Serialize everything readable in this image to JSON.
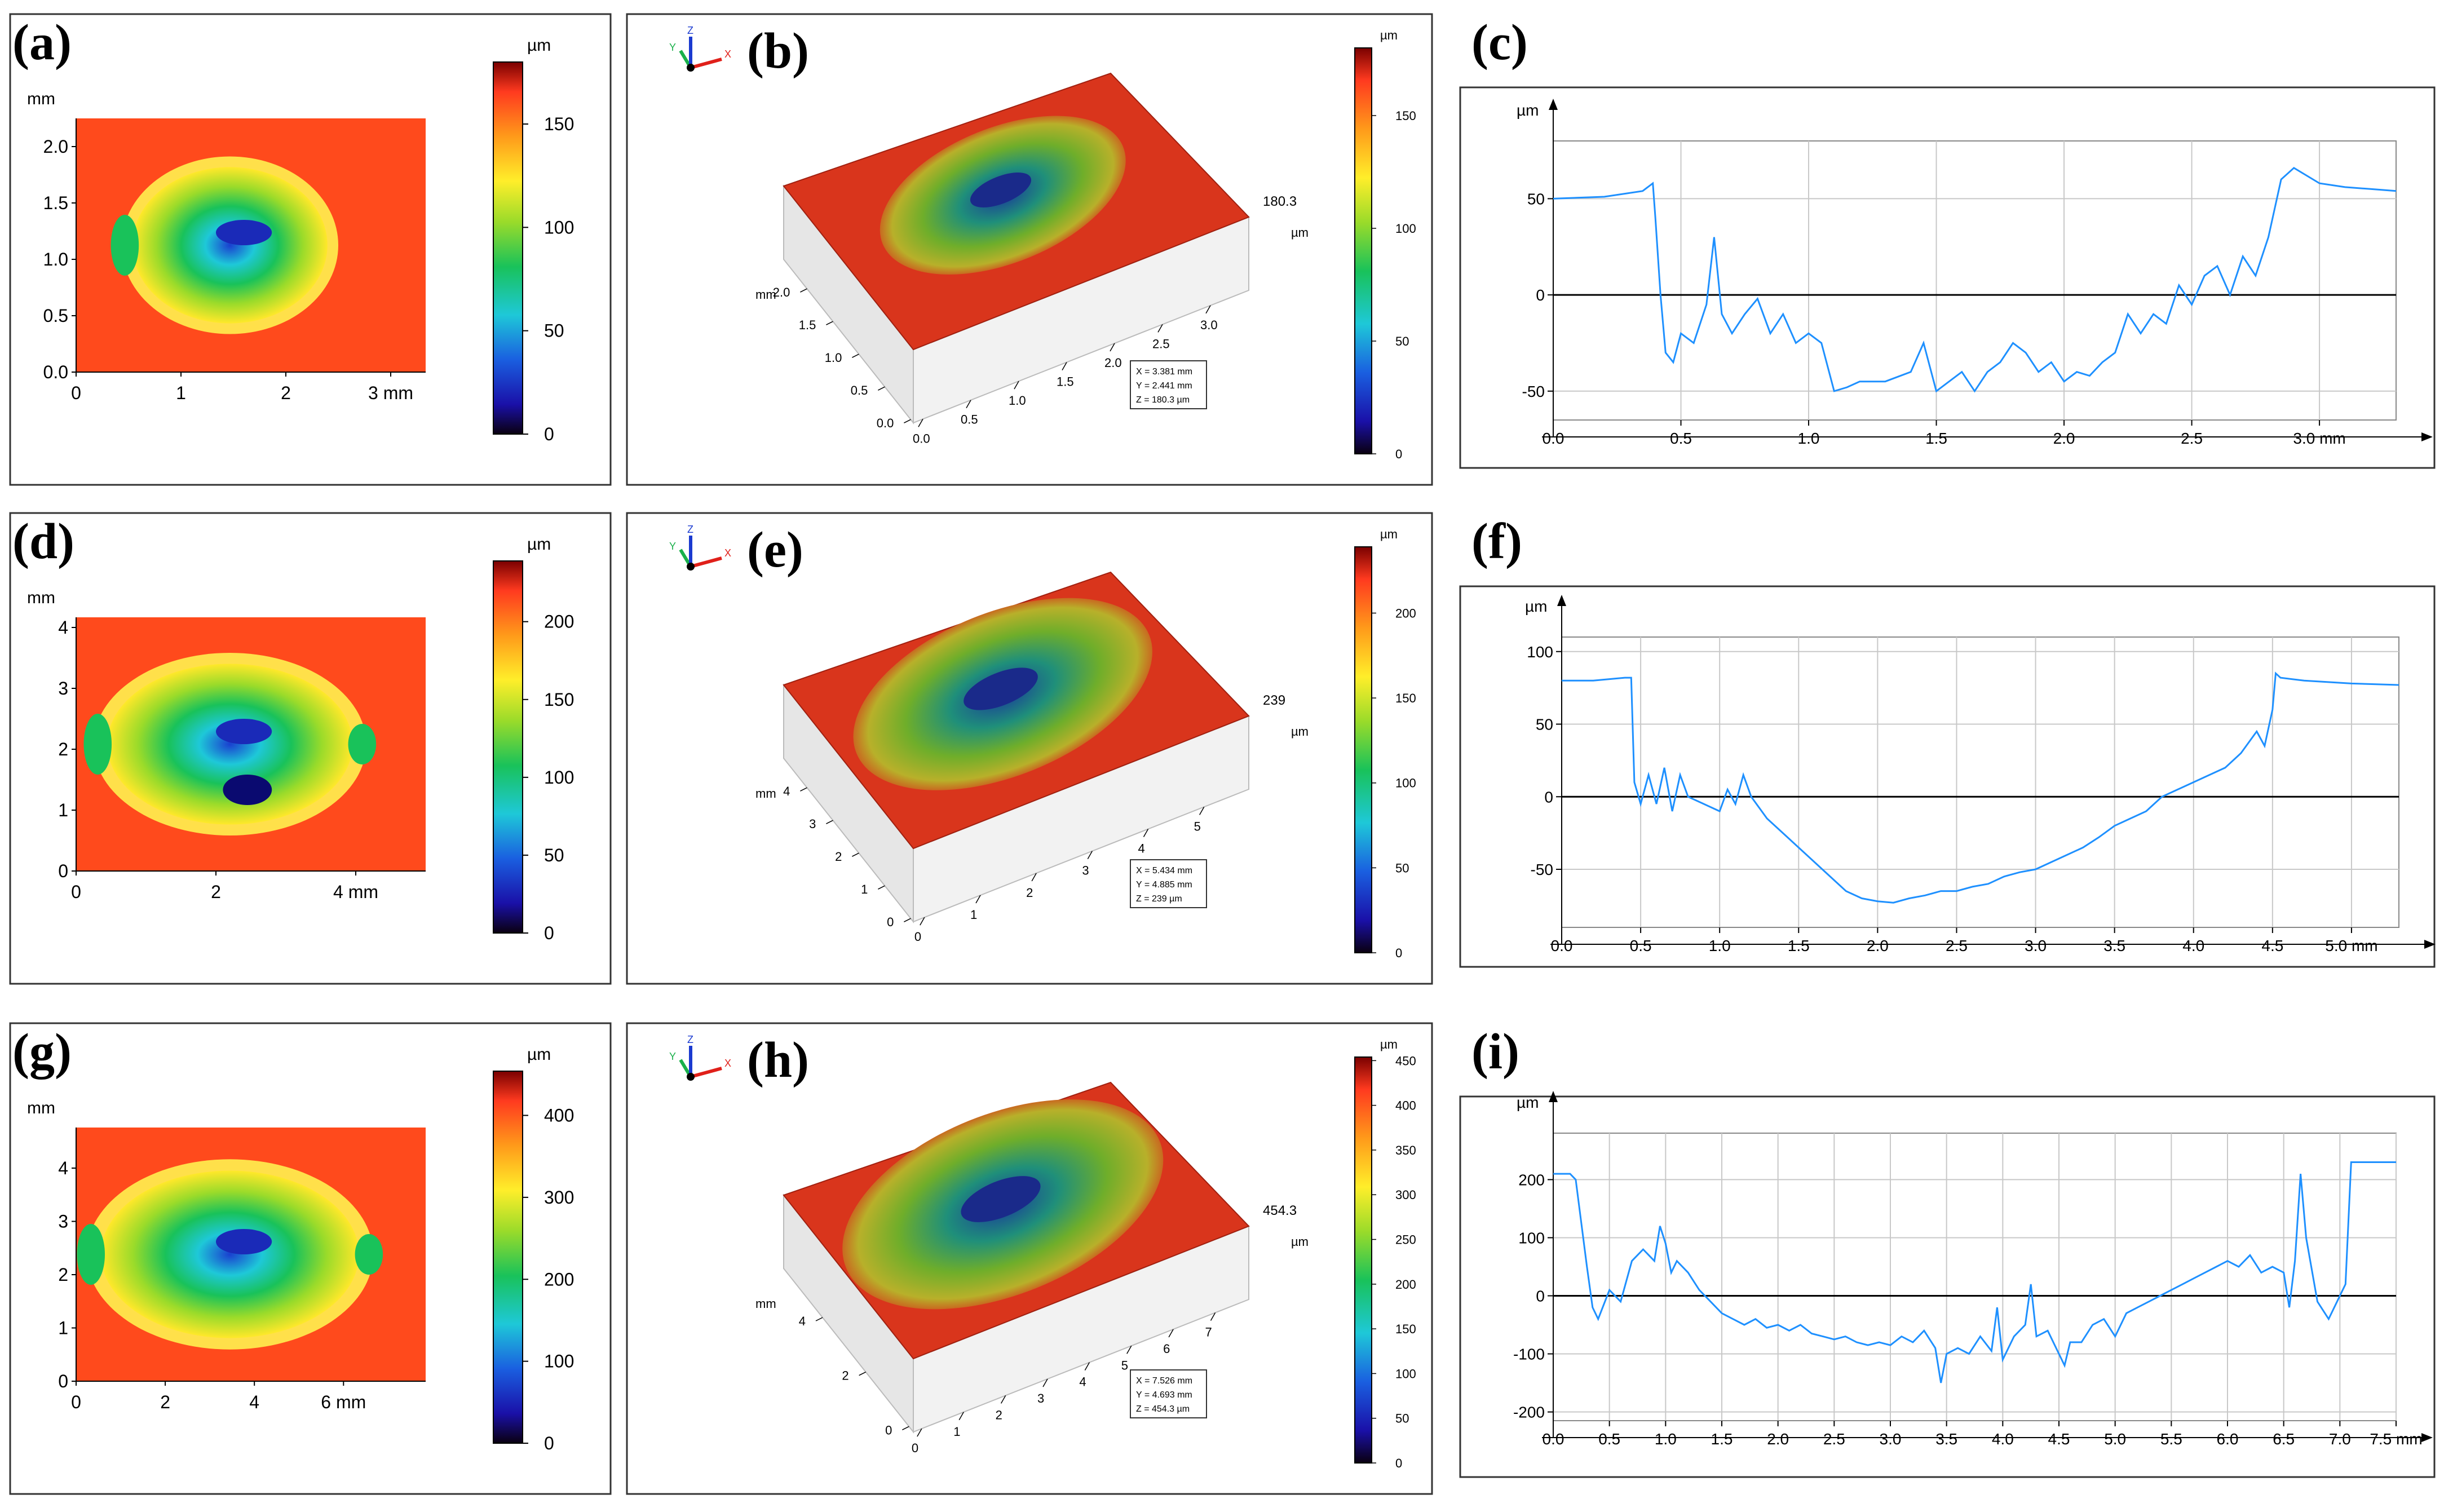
{
  "figure": {
    "colors": {
      "frame": "#333333",
      "profile_line": "#1E90FF",
      "grid": "#c8c8c8",
      "colorbar_stops": [
        "#7a0000",
        "#ff3a1f",
        "#ff9a1a",
        "#ffee2a",
        "#9adb2a",
        "#19c25a",
        "#1ec8d8",
        "#1a5fe0",
        "#1a10a8",
        "#0a0010"
      ]
    },
    "rows": [
      {
        "map_label": "(a)",
        "view_label": "(b)",
        "profile_label": "(c)",
        "map": {
          "unit_y": "mm",
          "unit_bar": "µm",
          "y_ticks": [
            "0.0",
            "0.5",
            "1.0",
            "1.5",
            "2.0"
          ],
          "x_ticks": [
            "0",
            "1",
            "2",
            "3 mm"
          ],
          "bar_ticks": [
            "0",
            "50",
            "100",
            "150"
          ],
          "bar_max": 180
        },
        "view": {
          "bar_unit": "µm",
          "bar_ticks": [
            "0",
            "50",
            "100",
            "150"
          ],
          "bar_max": 180,
          "z_label": "180.3",
          "z_unit": "µm",
          "x_ticks": [
            "0.0",
            "0.5",
            "1.0",
            "1.5",
            "2.0",
            "2.5",
            "3.0"
          ],
          "y_ticks": [
            "0.0",
            "0.5",
            "1.0",
            "1.5",
            "2.0"
          ],
          "axis_unit": "mm",
          "readout": [
            "X = 3.381 mm",
            "Y = 2.441 mm",
            "Z = 180.3 µm"
          ],
          "axis_letters": [
            "X",
            "Y",
            "Z"
          ]
        },
        "profile": {
          "y_unit": "µm",
          "y_ticks": [
            "-50",
            "0",
            "50"
          ],
          "x_ticks": [
            "0.0",
            "0.5",
            "1.0",
            "1.5",
            "2.0",
            "2.5",
            "3.0 mm"
          ]
        }
      },
      {
        "map_label": "(d)",
        "view_label": "(e)",
        "profile_label": "(f)",
        "map": {
          "unit_y": "mm",
          "unit_bar": "µm",
          "y_ticks": [
            "0",
            "1",
            "2",
            "3",
            "4"
          ],
          "x_ticks": [
            "0",
            "2",
            "4 mm"
          ],
          "bar_ticks": [
            "0",
            "50",
            "100",
            "150",
            "200"
          ],
          "bar_max": 239
        },
        "view": {
          "bar_unit": "µm",
          "bar_ticks": [
            "0",
            "50",
            "100",
            "150",
            "200"
          ],
          "bar_max": 239,
          "z_label": "239",
          "z_unit": "µm",
          "x_ticks": [
            "0",
            "1",
            "2",
            "3",
            "4",
            "5"
          ],
          "y_ticks": [
            "0",
            "1",
            "2",
            "3",
            "4"
          ],
          "axis_unit": "mm",
          "readout": [
            "X = 5.434 mm",
            "Y = 4.885 mm",
            "Z = 239 µm"
          ],
          "axis_letters": [
            "X",
            "Y",
            "Z"
          ]
        },
        "profile": {
          "y_unit": "µm",
          "y_ticks": [
            "-50",
            "0",
            "50",
            "100"
          ],
          "x_ticks": [
            "0.0",
            "0.5",
            "1.0",
            "1.5",
            "2.0",
            "2.5",
            "3.0",
            "3.5",
            "4.0",
            "4.5",
            "5.0 mm"
          ]
        }
      },
      {
        "map_label": "(g)",
        "view_label": "(h)",
        "profile_label": "(i)",
        "map": {
          "unit_y": "mm",
          "unit_bar": "µm",
          "y_ticks": [
            "0",
            "1",
            "2",
            "3",
            "4"
          ],
          "x_ticks": [
            "0",
            "2",
            "4",
            "6 mm"
          ],
          "bar_ticks": [
            "0",
            "100",
            "200",
            "300",
            "400"
          ],
          "bar_max": 454
        },
        "view": {
          "bar_unit": "µm",
          "bar_ticks": [
            "0",
            "50",
            "100",
            "150",
            "200",
            "250",
            "300",
            "350",
            "400",
            "450"
          ],
          "bar_max": 454,
          "z_label": "454.3",
          "z_unit": "µm",
          "x_ticks": [
            "0",
            "1",
            "2",
            "3",
            "4",
            "5",
            "6",
            "7"
          ],
          "y_ticks": [
            "0",
            "2",
            "4"
          ],
          "axis_unit": "mm",
          "readout": [
            "X = 7.526 mm",
            "Y = 4.693 mm",
            "Z = 454.3 µm"
          ],
          "axis_letters": [
            "X",
            "Y",
            "Z"
          ]
        },
        "profile": {
          "y_unit": "µm",
          "y_ticks": [
            "-200",
            "-100",
            "0",
            "100",
            "200"
          ],
          "x_ticks": [
            "0.0",
            "0.5",
            "1.0",
            "1.5",
            "2.0",
            "2.5",
            "3.0",
            "3.5",
            "4.0",
            "4.5",
            "5.0",
            "5.5",
            "6.0",
            "6.5",
            "7.0",
            "7.5 mm"
          ]
        }
      }
    ]
  },
  "chart_data": [
    {
      "type": "line",
      "title": "(c)",
      "xlabel": "mm",
      "ylabel": "µm",
      "xlim": [
        0,
        3.3
      ],
      "ylim": [
        -65,
        80
      ],
      "x": [
        0.0,
        0.2,
        0.35,
        0.39,
        0.4,
        0.42,
        0.44,
        0.47,
        0.5,
        0.55,
        0.6,
        0.63,
        0.66,
        0.7,
        0.75,
        0.8,
        0.85,
        0.9,
        0.95,
        1.0,
        1.05,
        1.1,
        1.15,
        1.2,
        1.3,
        1.4,
        1.45,
        1.5,
        1.55,
        1.6,
        1.65,
        1.7,
        1.75,
        1.8,
        1.85,
        1.9,
        1.95,
        2.0,
        2.05,
        2.1,
        2.15,
        2.2,
        2.25,
        2.3,
        2.35,
        2.4,
        2.45,
        2.5,
        2.55,
        2.6,
        2.65,
        2.7,
        2.75,
        2.8,
        2.85,
        2.9,
        3.0,
        3.1,
        3.2,
        3.3
      ],
      "y": [
        50,
        51,
        54,
        58,
        40,
        0,
        -30,
        -35,
        -20,
        -25,
        -5,
        30,
        -10,
        -20,
        -10,
        -2,
        -20,
        -10,
        -25,
        -20,
        -25,
        -50,
        -48,
        -45,
        -45,
        -40,
        -25,
        -50,
        -45,
        -40,
        -50,
        -40,
        -35,
        -25,
        -30,
        -40,
        -35,
        -45,
        -40,
        -42,
        -35,
        -30,
        -10,
        -20,
        -10,
        -15,
        5,
        -5,
        10,
        15,
        0,
        20,
        10,
        30,
        60,
        66,
        58,
        56,
        55,
        54
      ]
    },
    {
      "type": "line",
      "title": "(f)",
      "xlabel": "mm",
      "ylabel": "µm",
      "xlim": [
        0,
        5.3
      ],
      "ylim": [
        -90,
        110
      ],
      "x": [
        0.0,
        0.2,
        0.4,
        0.44,
        0.46,
        0.5,
        0.55,
        0.6,
        0.65,
        0.7,
        0.75,
        0.8,
        0.9,
        1.0,
        1.05,
        1.1,
        1.15,
        1.2,
        1.3,
        1.4,
        1.5,
        1.6,
        1.7,
        1.8,
        1.9,
        2.0,
        2.1,
        2.2,
        2.3,
        2.4,
        2.5,
        2.6,
        2.7,
        2.8,
        2.9,
        3.0,
        3.1,
        3.2,
        3.3,
        3.4,
        3.5,
        3.6,
        3.7,
        3.8,
        3.9,
        4.0,
        4.1,
        4.2,
        4.3,
        4.4,
        4.45,
        4.5,
        4.52,
        4.55,
        4.7,
        5.0,
        5.3
      ],
      "y": [
        80,
        80,
        82,
        82,
        10,
        -5,
        15,
        -5,
        20,
        -10,
        15,
        0,
        -5,
        -10,
        5,
        -5,
        15,
        0,
        -15,
        -25,
        -35,
        -45,
        -55,
        -65,
        -70,
        -72,
        -73,
        -70,
        -68,
        -65,
        -65,
        -62,
        -60,
        -55,
        -52,
        -50,
        -45,
        -40,
        -35,
        -28,
        -20,
        -15,
        -10,
        0,
        5,
        10,
        15,
        20,
        30,
        45,
        35,
        60,
        85,
        82,
        80,
        78,
        77
      ]
    },
    {
      "type": "line",
      "title": "(i)",
      "xlabel": "mm",
      "ylabel": "µm",
      "xlim": [
        0,
        7.5
      ],
      "ylim": [
        -215,
        280
      ],
      "x": [
        0.0,
        0.15,
        0.2,
        0.3,
        0.35,
        0.4,
        0.5,
        0.6,
        0.7,
        0.8,
        0.9,
        0.95,
        1.0,
        1.05,
        1.1,
        1.2,
        1.3,
        1.4,
        1.5,
        1.6,
        1.7,
        1.8,
        1.9,
        2.0,
        2.1,
        2.2,
        2.3,
        2.4,
        2.5,
        2.6,
        2.7,
        2.8,
        2.9,
        3.0,
        3.1,
        3.2,
        3.3,
        3.4,
        3.45,
        3.5,
        3.6,
        3.7,
        3.8,
        3.9,
        3.95,
        4.0,
        4.1,
        4.2,
        4.25,
        4.3,
        4.4,
        4.5,
        4.55,
        4.6,
        4.7,
        4.8,
        4.9,
        5.0,
        5.1,
        5.2,
        5.3,
        5.4,
        5.5,
        5.6,
        5.7,
        5.8,
        5.9,
        6.0,
        6.1,
        6.2,
        6.3,
        6.4,
        6.5,
        6.55,
        6.6,
        6.65,
        6.7,
        6.8,
        6.9,
        7.0,
        7.05,
        7.1,
        7.3,
        7.5
      ],
      "y": [
        210,
        210,
        200,
        50,
        -20,
        -40,
        10,
        -10,
        60,
        80,
        60,
        120,
        90,
        40,
        60,
        40,
        10,
        -10,
        -30,
        -40,
        -50,
        -40,
        -55,
        -50,
        -60,
        -50,
        -65,
        -70,
        -75,
        -70,
        -80,
        -85,
        -80,
        -85,
        -70,
        -80,
        -60,
        -90,
        -150,
        -100,
        -90,
        -100,
        -70,
        -95,
        -20,
        -110,
        -70,
        -50,
        20,
        -70,
        -60,
        -100,
        -120,
        -80,
        -80,
        -50,
        -40,
        -70,
        -30,
        -20,
        -10,
        0,
        10,
        20,
        30,
        40,
        50,
        60,
        50,
        70,
        40,
        50,
        40,
        -20,
        60,
        210,
        100,
        -10,
        -40,
        0,
        20,
        230,
        230,
        230
      ]
    }
  ]
}
